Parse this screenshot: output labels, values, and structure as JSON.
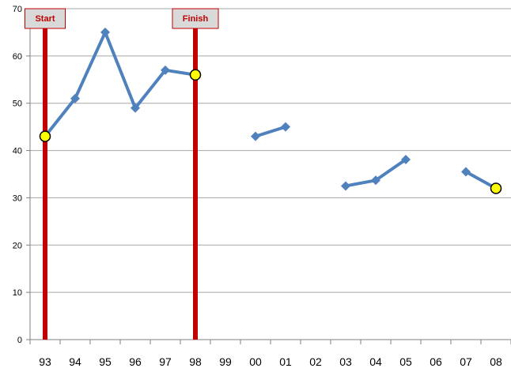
{
  "chart_data": {
    "type": "line",
    "title": "",
    "xlabel": "",
    "ylabel": "",
    "ylim": [
      0,
      70
    ],
    "yticks": [
      0,
      10,
      20,
      30,
      40,
      50,
      60,
      70
    ],
    "grid": "horizontal",
    "categories": [
      "93",
      "94",
      "95",
      "96",
      "97",
      "98",
      "99",
      "00",
      "01",
      "02",
      "03",
      "04",
      "05",
      "06",
      "07",
      "08"
    ],
    "series": [
      {
        "values": [
          43,
          51,
          65,
          49,
          57,
          56,
          null,
          43,
          45,
          null,
          32.5,
          33.7,
          38.1,
          null,
          35.5,
          32
        ],
        "color": "#4f81bd"
      }
    ],
    "highlight_points": [
      {
        "category": "93",
        "value": 43
      },
      {
        "category": "98",
        "value": 56
      },
      {
        "category": "08",
        "value": 32
      }
    ],
    "markers": [
      {
        "label": "Start",
        "category": "93"
      },
      {
        "label": "Finish",
        "category": "98"
      }
    ],
    "colors": {
      "line": "#4f81bd",
      "marker_bar": "#c00000",
      "highlight_fill": "#ffff00",
      "label_box": "#d9d9d9",
      "grid": "#a6a6a6"
    }
  }
}
